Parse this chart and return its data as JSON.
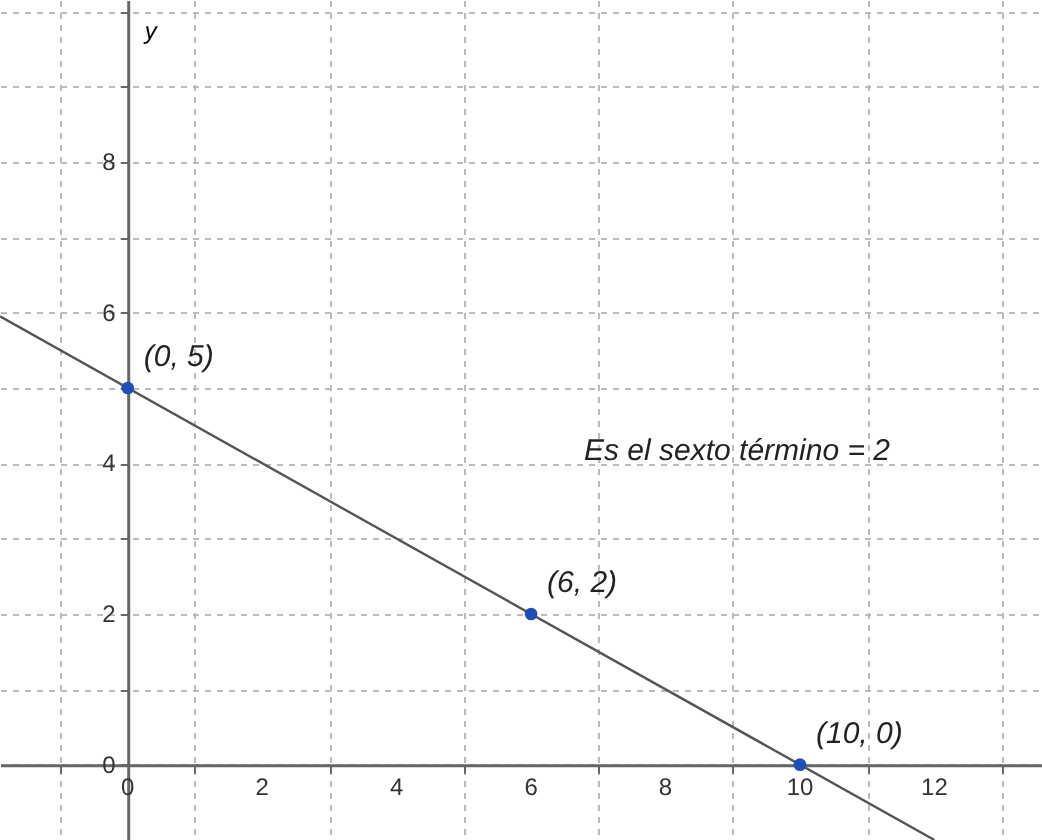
{
  "chart_data": {
    "type": "line",
    "ylabel": "y",
    "series": [
      {
        "color": "#555555",
        "x": [
          -1.9,
          12
        ],
        "values": [
          5.95,
          -1
        ],
        "marker": "none"
      },
      {
        "type": "scatter",
        "color": "#1f4fb4",
        "x": [
          0,
          6,
          10
        ],
        "values": [
          5,
          2,
          0
        ],
        "marker": "circle"
      }
    ],
    "annotations": [
      {
        "text": "(0, 5)",
        "x": 0,
        "y": 5
      },
      {
        "text": "(6, 2)",
        "x": 6,
        "y": 2
      },
      {
        "text": "(10, 0)",
        "x": 10,
        "y": 0
      },
      "Es el sexto término = 2"
    ],
    "xlim": [
      -1.9,
      13.6
    ],
    "ylim": [
      -1,
      10.15
    ],
    "xticks": [
      {
        "value": -1,
        "label": null
      },
      0,
      {
        "value": 1,
        "label": null
      },
      2,
      {
        "value": 3,
        "label": null
      },
      4,
      {
        "value": 5,
        "label": null
      },
      6,
      {
        "value": 7,
        "label": null
      },
      8,
      {
        "value": 9,
        "label": null
      },
      10,
      {
        "value": 11,
        "label": null
      },
      12,
      {
        "value": 13,
        "label": null
      }
    ],
    "yticks": [
      0,
      {
        "value": 1,
        "label": null
      },
      2,
      {
        "value": 3,
        "label": null
      },
      4,
      {
        "value": 5,
        "label": null
      },
      6,
      {
        "value": 7,
        "label": null
      },
      8,
      {
        "value": 9,
        "label": null
      },
      {
        "value": 10,
        "label": null
      }
    ],
    "grid": true
  }
}
